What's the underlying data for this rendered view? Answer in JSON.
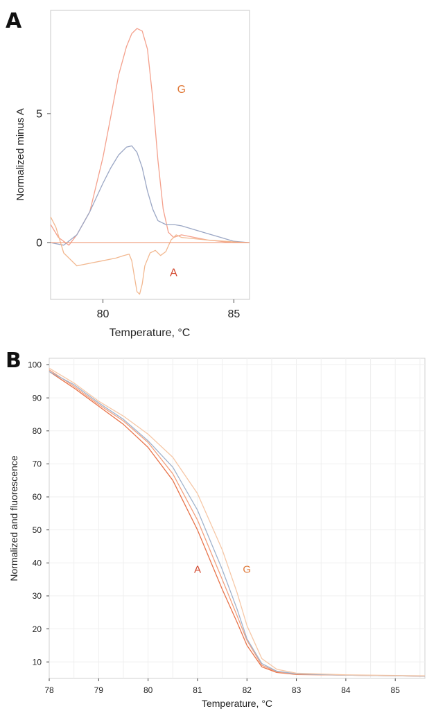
{
  "panel_a": {
    "letter": "A",
    "chart_data": {
      "type": "line",
      "xlabel": "Temperature, °C",
      "ylabel": "Normalized minus A",
      "xlim": [
        78,
        85.6
      ],
      "ylim": [
        -2.2,
        9
      ],
      "x_ticks": [
        "80",
        "85"
      ],
      "y_ticks": [
        "0",
        "5"
      ],
      "grid": false,
      "legend": "none",
      "annotations": [
        {
          "text": "G",
          "x": 83.0,
          "y": 5.8,
          "color": "#e07a3a"
        },
        {
          "text": "A",
          "x": 82.7,
          "y": -1.3,
          "color": "#d2452b"
        }
      ],
      "series": [
        {
          "color": "#f4a08c",
          "x": [
            78,
            78.3,
            78.7,
            79,
            79.5,
            80,
            80.3,
            80.6,
            80.9,
            81.1,
            81.3,
            81.5,
            81.7,
            81.9,
            82.1,
            82.3,
            82.5,
            82.7,
            83,
            83.5,
            84,
            84.5,
            85,
            85.6
          ],
          "y": [
            0.7,
            0.2,
            -0.1,
            0.3,
            1.2,
            3.3,
            4.9,
            6.5,
            7.6,
            8.1,
            8.3,
            8.2,
            7.5,
            5.6,
            3.2,
            1.3,
            0.4,
            0.2,
            0.3,
            0.2,
            0.1,
            0.05,
            0,
            0
          ]
        },
        {
          "color": "#9aa6c4",
          "x": [
            78,
            78.5,
            79,
            79.5,
            80,
            80.3,
            80.6,
            80.9,
            81.1,
            81.3,
            81.5,
            81.7,
            81.9,
            82.1,
            82.4,
            82.7,
            83,
            83.5,
            84,
            84.5,
            85,
            85.6
          ],
          "y": [
            0,
            -0.1,
            0.3,
            1.2,
            2.3,
            2.9,
            3.4,
            3.7,
            3.75,
            3.5,
            2.9,
            2.0,
            1.3,
            0.85,
            0.7,
            0.7,
            0.65,
            0.5,
            0.35,
            0.2,
            0.05,
            0
          ]
        },
        {
          "color": "#f2b890",
          "x": [
            78,
            78.2,
            78.5,
            79,
            79.5,
            80,
            80.5,
            80.8,
            81.0,
            81.1,
            81.2,
            81.3,
            81.4,
            81.5,
            81.6,
            81.8,
            82.0,
            82.2,
            82.4,
            82.6,
            82.8,
            83,
            83.5,
            84,
            85,
            85.6
          ],
          "y": [
            1.0,
            0.6,
            -0.4,
            -0.9,
            -0.8,
            -0.7,
            -0.6,
            -0.5,
            -0.45,
            -0.7,
            -1.3,
            -1.9,
            -2.0,
            -1.6,
            -0.9,
            -0.4,
            -0.3,
            -0.5,
            -0.35,
            0.1,
            0.3,
            0.2,
            0.15,
            0.1,
            0.03,
            0
          ]
        },
        {
          "color": "#f0a080",
          "x": [
            78,
            85.6
          ],
          "y": [
            0,
            0
          ]
        }
      ]
    }
  },
  "panel_b": {
    "letter": "B",
    "chart_data": {
      "type": "line",
      "xlabel": "Temperature, °C",
      "ylabel": "Normalized and fluorescence",
      "xlim": [
        78,
        85.6
      ],
      "ylim": [
        5,
        102
      ],
      "x_ticks": [
        "78",
        "79",
        "80",
        "81",
        "82",
        "83",
        "84",
        "85"
      ],
      "y_ticks": [
        "10",
        "20",
        "30",
        "40",
        "50",
        "60",
        "70",
        "80",
        "90",
        "100"
      ],
      "grid": true,
      "legend": "none",
      "annotations": [
        {
          "text": "A",
          "x": 81.0,
          "y": 37,
          "color": "#d2452b"
        },
        {
          "text": "G",
          "x": 82.0,
          "y": 37,
          "color": "#e07a3a"
        }
      ],
      "series": [
        {
          "color": "#e8734a",
          "x": [
            78,
            78.5,
            79,
            79.5,
            80,
            80.5,
            81,
            81.5,
            81.8,
            82,
            82.3,
            82.6,
            83,
            84,
            85,
            85.6
          ],
          "y": [
            98,
            93,
            87.5,
            82,
            75,
            65,
            50,
            32,
            22,
            15,
            8.5,
            6.8,
            6.2,
            6,
            5.8,
            5.7
          ]
        },
        {
          "color": "#f2a07e",
          "x": [
            78,
            78.5,
            79,
            79.5,
            80,
            80.5,
            81,
            81.5,
            81.8,
            82,
            82.3,
            82.6,
            83,
            84,
            85,
            85.6
          ],
          "y": [
            98.5,
            93.5,
            88,
            83,
            76.5,
            67,
            53,
            35,
            24,
            16.5,
            9,
            7,
            6.3,
            6,
            5.8,
            5.7
          ]
        },
        {
          "color": "#9fb2cc",
          "x": [
            78,
            78.5,
            79,
            79.5,
            80,
            80.5,
            81,
            81.5,
            81.8,
            82,
            82.3,
            82.6,
            83,
            84,
            85,
            85.6
          ],
          "y": [
            98,
            94,
            88.5,
            83.5,
            77,
            69,
            56,
            38,
            26,
            17,
            9.5,
            7.2,
            6.4,
            6,
            5.8,
            5.7
          ]
        },
        {
          "color": "#f6c7a6",
          "x": [
            78,
            78.5,
            79,
            79.5,
            80,
            80.5,
            81,
            81.5,
            81.8,
            82,
            82.3,
            82.6,
            83,
            84,
            85,
            85.6
          ],
          "y": [
            99,
            94.5,
            89,
            84.5,
            79,
            72,
            61,
            44,
            31,
            21,
            11,
            7.8,
            6.6,
            6.1,
            5.9,
            5.8
          ]
        }
      ]
    }
  }
}
